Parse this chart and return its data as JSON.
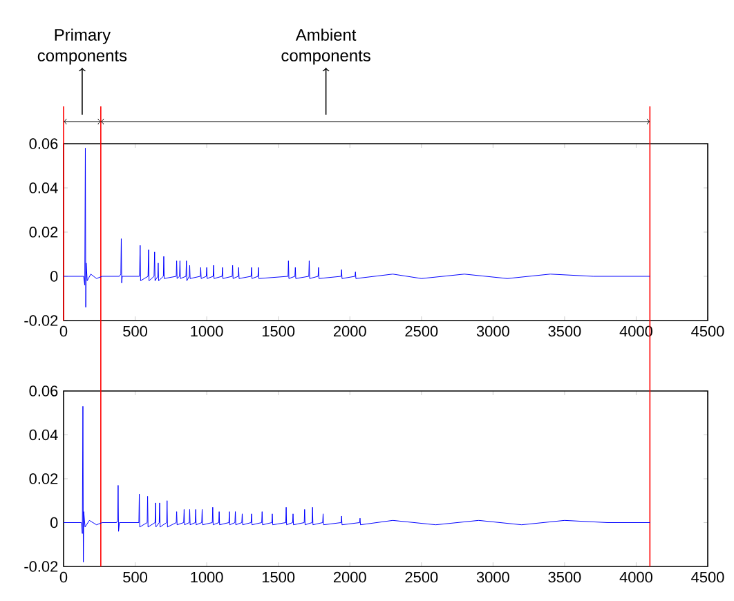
{
  "chart_data": [
    {
      "type": "line",
      "color": "#0000ff",
      "marker": "none",
      "line_style": "solid",
      "xlim": [
        0,
        4500
      ],
      "ylim": [
        -0.02,
        0.06
      ],
      "xticks": [
        0,
        500,
        1000,
        1500,
        2000,
        2500,
        3000,
        3500,
        4000,
        4500
      ],
      "yticks": [
        -0.02,
        0,
        0.02,
        0.04,
        0.06
      ],
      "annotations": [
        "Primary components",
        "Ambient components"
      ],
      "ref_lines": [
        {
          "axis": "x",
          "value": 0,
          "color": "#ff0000"
        },
        {
          "axis": "x",
          "value": 260,
          "color": "#ff0000"
        },
        {
          "axis": "x",
          "value": 4096,
          "color": "#ff0000"
        }
      ],
      "x": [
        0,
        140,
        148,
        152,
        155,
        158,
        165,
        190,
        230,
        270,
        390,
        400,
        403,
        406,
        410,
        530,
        535,
        538,
        590,
        594,
        597,
        632,
        636,
        639,
        658,
        661,
        664,
        697,
        700,
        703,
        787,
        790,
        793,
        810,
        813,
        816,
        855,
        858,
        861,
        878,
        881,
        884,
        955,
        958,
        961,
        997,
        1000,
        1003,
        1045,
        1048,
        1051,
        1107,
        1110,
        1113,
        1178,
        1181,
        1184,
        1220,
        1223,
        1226,
        1310,
        1313,
        1316,
        1358,
        1361,
        1364,
        1568,
        1571,
        1574,
        1616,
        1619,
        1622,
        1713,
        1716,
        1719,
        1778,
        1781,
        1784,
        1939,
        1942,
        1945,
        2036,
        2039,
        2042,
        2300,
        2500,
        2800,
        3100,
        3400,
        3700,
        4000,
        4096
      ],
      "values": [
        0,
        0,
        -0.004,
        0.058,
        -0.014,
        0.006,
        -0.002,
        0.001,
        -0.001,
        0,
        0,
        0.001,
        0.017,
        -0.003,
        0,
        0,
        0.014,
        -0.002,
        0,
        0.012,
        -0.002,
        0,
        0.011,
        -0.002,
        0,
        0.006,
        -0.002,
        0,
        0.009,
        -0.001,
        0,
        0.007,
        -0.001,
        0,
        0.007,
        -0.001,
        0,
        0.007,
        -0.002,
        0,
        0.005,
        -0.001,
        0,
        0.004,
        -0.001,
        0,
        0.004,
        -0.001,
        0,
        0.005,
        -0.001,
        0,
        0.004,
        -0.001,
        0,
        0.005,
        -0.001,
        0,
        0.004,
        -0.001,
        0,
        0.004,
        -0.001,
        0,
        0.004,
        -0.001,
        0,
        0.007,
        -0.001,
        0,
        0.004,
        -0.001,
        0,
        0.007,
        -0.001,
        0,
        0.004,
        -0.001,
        0,
        0.003,
        -0.001,
        0,
        0.002,
        -0.001,
        0.001,
        -0.001,
        0.001,
        -0.001,
        0.001,
        0,
        0,
        0
      ]
    },
    {
      "type": "line",
      "color": "#0000ff",
      "marker": "none",
      "line_style": "solid",
      "xlim": [
        0,
        4500
      ],
      "ylim": [
        -0.02,
        0.06
      ],
      "xticks": [
        0,
        500,
        1000,
        1500,
        2000,
        2500,
        3000,
        3500,
        4000,
        4500
      ],
      "yticks": [
        -0.02,
        0,
        0.02,
        0.04,
        0.06
      ],
      "ref_lines": [
        {
          "axis": "x",
          "value": 260,
          "color": "#ff0000"
        },
        {
          "axis": "x",
          "value": 4096,
          "color": "#ff0000"
        }
      ],
      "x": [
        0,
        125,
        131,
        135,
        138,
        141,
        150,
        180,
        230,
        270,
        370,
        378,
        381,
        384,
        390,
        526,
        529,
        532,
        584,
        587,
        590,
        639,
        642,
        645,
        668,
        671,
        674,
        720,
        723,
        726,
        787,
        790,
        793,
        839,
        842,
        845,
        878,
        881,
        884,
        920,
        923,
        926,
        965,
        968,
        971,
        1039,
        1042,
        1045,
        1084,
        1087,
        1090,
        1155,
        1158,
        1161,
        1197,
        1200,
        1203,
        1245,
        1248,
        1251,
        1310,
        1313,
        1316,
        1384,
        1387,
        1390,
        1455,
        1458,
        1461,
        1552,
        1555,
        1558,
        1600,
        1603,
        1606,
        1681,
        1684,
        1687,
        1736,
        1739,
        1742,
        1810,
        1813,
        1816,
        1939,
        1942,
        1945,
        2068,
        2071,
        2074,
        2300,
        2600,
        2900,
        3200,
        3500,
        3800,
        4096
      ],
      "values": [
        0,
        0,
        -0.005,
        0.053,
        -0.018,
        0.005,
        -0.002,
        0.001,
        -0.001,
        0,
        0,
        0.001,
        0.017,
        -0.004,
        0,
        0,
        0.013,
        -0.002,
        0,
        0.012,
        -0.002,
        0,
        0.009,
        -0.002,
        0,
        0.009,
        -0.002,
        0,
        0.01,
        -0.002,
        0,
        0.005,
        -0.001,
        0,
        0.006,
        -0.001,
        0,
        0.006,
        -0.001,
        0,
        0.006,
        -0.001,
        0,
        0.006,
        -0.001,
        0,
        0.007,
        -0.001,
        0,
        0.005,
        -0.001,
        0,
        0.005,
        -0.001,
        0,
        0.005,
        -0.001,
        0,
        0.004,
        -0.001,
        0,
        0.004,
        -0.001,
        0,
        0.005,
        -0.001,
        0,
        0.004,
        -0.001,
        0,
        0.007,
        -0.001,
        0,
        0.004,
        -0.001,
        0,
        0.006,
        -0.001,
        0,
        0.007,
        -0.001,
        0,
        0.004,
        -0.001,
        0,
        0.003,
        -0.001,
        0,
        0.002,
        -0.001,
        0.001,
        -0.001,
        0.001,
        -0.001,
        0.001,
        0,
        0
      ]
    }
  ]
}
